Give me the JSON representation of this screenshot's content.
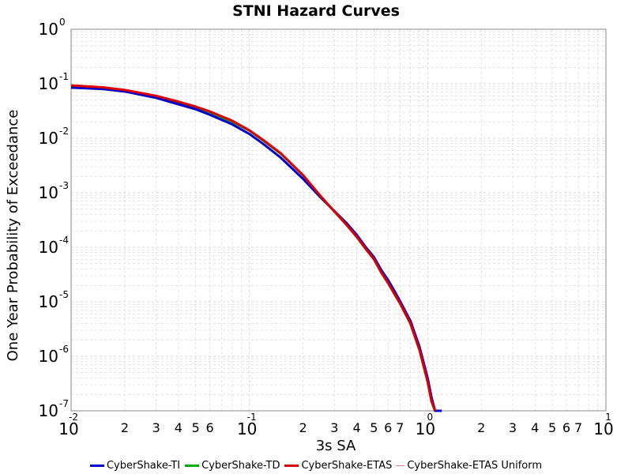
{
  "chart_data": {
    "type": "line",
    "title": "STNI Hazard Curves",
    "xlabel": "3s SA",
    "ylabel": "One Year Probability of Exceedance",
    "x_scale": "log",
    "y_scale": "log",
    "xlim": [
      0.01,
      10
    ],
    "ylim": [
      1e-07,
      1
    ],
    "grid": true,
    "legend_position": "bottom",
    "x_major_ticks": [
      {
        "value": 0.01,
        "base": "10",
        "exp": "-2"
      },
      {
        "value": 0.1,
        "base": "10",
        "exp": "-1"
      },
      {
        "value": 1,
        "base": "10",
        "exp": "0"
      },
      {
        "value": 10,
        "base": "10",
        "exp": "1"
      }
    ],
    "x_minor_ticks": [
      {
        "value": 0.02,
        "label": "2"
      },
      {
        "value": 0.03,
        "label": "3"
      },
      {
        "value": 0.04,
        "label": "4"
      },
      {
        "value": 0.05,
        "label": "5"
      },
      {
        "value": 0.06,
        "label": "6"
      },
      {
        "value": 0.2,
        "label": "2"
      },
      {
        "value": 0.3,
        "label": "3"
      },
      {
        "value": 0.4,
        "label": "4"
      },
      {
        "value": 0.5,
        "label": "5"
      },
      {
        "value": 0.6,
        "label": "6"
      },
      {
        "value": 0.7,
        "label": "7"
      },
      {
        "value": 2,
        "label": "2"
      },
      {
        "value": 3,
        "label": "3"
      },
      {
        "value": 4,
        "label": "4"
      },
      {
        "value": 5,
        "label": "5"
      },
      {
        "value": 6,
        "label": "6"
      },
      {
        "value": 7,
        "label": "7"
      }
    ],
    "y_major_ticks": [
      {
        "value": 1,
        "base": "10",
        "exp": "0"
      },
      {
        "value": 0.1,
        "base": "10",
        "exp": "-1"
      },
      {
        "value": 0.01,
        "base": "10",
        "exp": "-2"
      },
      {
        "value": 0.001,
        "base": "10",
        "exp": "-3"
      },
      {
        "value": 0.0001,
        "base": "10",
        "exp": "-4"
      },
      {
        "value": 1e-05,
        "base": "10",
        "exp": "-5"
      },
      {
        "value": 1e-06,
        "base": "10",
        "exp": "-6"
      },
      {
        "value": 1e-07,
        "base": "10",
        "exp": "-7"
      }
    ],
    "series": [
      {
        "name": "CyberShake-TI",
        "color": "#0000cc",
        "style": "solid",
        "x": [
          0.01,
          0.015,
          0.02,
          0.03,
          0.04,
          0.05,
          0.06,
          0.08,
          0.1,
          0.12,
          0.15,
          0.2,
          0.25,
          0.3,
          0.35,
          0.4,
          0.45,
          0.5,
          0.55,
          0.6,
          0.65,
          0.7,
          0.8,
          0.9,
          1.0,
          1.05,
          1.1,
          1.15,
          1.2
        ],
        "y": [
          0.085,
          0.08,
          0.072,
          0.055,
          0.042,
          0.034,
          0.027,
          0.018,
          0.012,
          0.0078,
          0.0044,
          0.0018,
          0.00083,
          0.00046,
          0.00028,
          0.00017,
          0.0001,
          6.6e-05,
          3.8e-05,
          2.5e-05,
          1.6e-05,
          1.03e-05,
          4.5e-06,
          1.5e-06,
          4e-07,
          1.8e-07,
          1e-07,
          1e-07,
          1e-07
        ]
      },
      {
        "name": "CyberShake-TD",
        "color": "#00aa00",
        "style": "solid",
        "x": [
          0.01,
          0.015,
          0.02,
          0.03,
          0.04,
          0.05,
          0.06,
          0.08,
          0.1,
          0.12,
          0.15,
          0.2,
          0.25,
          0.3,
          0.35,
          0.4,
          0.45,
          0.5,
          0.55,
          0.6,
          0.65,
          0.7,
          0.8,
          0.9,
          1.0,
          1.05,
          1.1
        ],
        "y": [
          0.092,
          0.085,
          0.076,
          0.059,
          0.046,
          0.037,
          0.03,
          0.02,
          0.0138,
          0.009,
          0.0052,
          0.0021,
          0.00088,
          0.00045,
          0.00026,
          0.000155,
          9.3e-05,
          6e-05,
          3.4e-05,
          2.2e-05,
          1.4e-05,
          9.3e-06,
          4e-06,
          1.3e-06,
          3.4e-07,
          1.5e-07,
          1e-07
        ]
      },
      {
        "name": "CyberShake-ETAS",
        "color": "#dd0000",
        "style": "solid",
        "x": [
          0.01,
          0.015,
          0.02,
          0.03,
          0.04,
          0.05,
          0.06,
          0.08,
          0.1,
          0.12,
          0.15,
          0.2,
          0.25,
          0.3,
          0.35,
          0.4,
          0.45,
          0.5,
          0.55,
          0.6,
          0.65,
          0.7,
          0.8,
          0.9,
          1.0,
          1.05,
          1.1
        ],
        "y": [
          0.093,
          0.086,
          0.077,
          0.06,
          0.047,
          0.038,
          0.031,
          0.021,
          0.014,
          0.0092,
          0.0053,
          0.0021,
          0.00088,
          0.00045,
          0.00026,
          0.000155,
          9.3e-05,
          6e-05,
          3.4e-05,
          2.2e-05,
          1.4e-05,
          9.3e-06,
          4e-06,
          1.3e-06,
          3.4e-07,
          1.5e-07,
          1e-07
        ]
      },
      {
        "name": "CyberShake-ETAS Uniform",
        "color": "#ff6666",
        "style": "dashed",
        "x": [],
        "y": []
      }
    ]
  }
}
